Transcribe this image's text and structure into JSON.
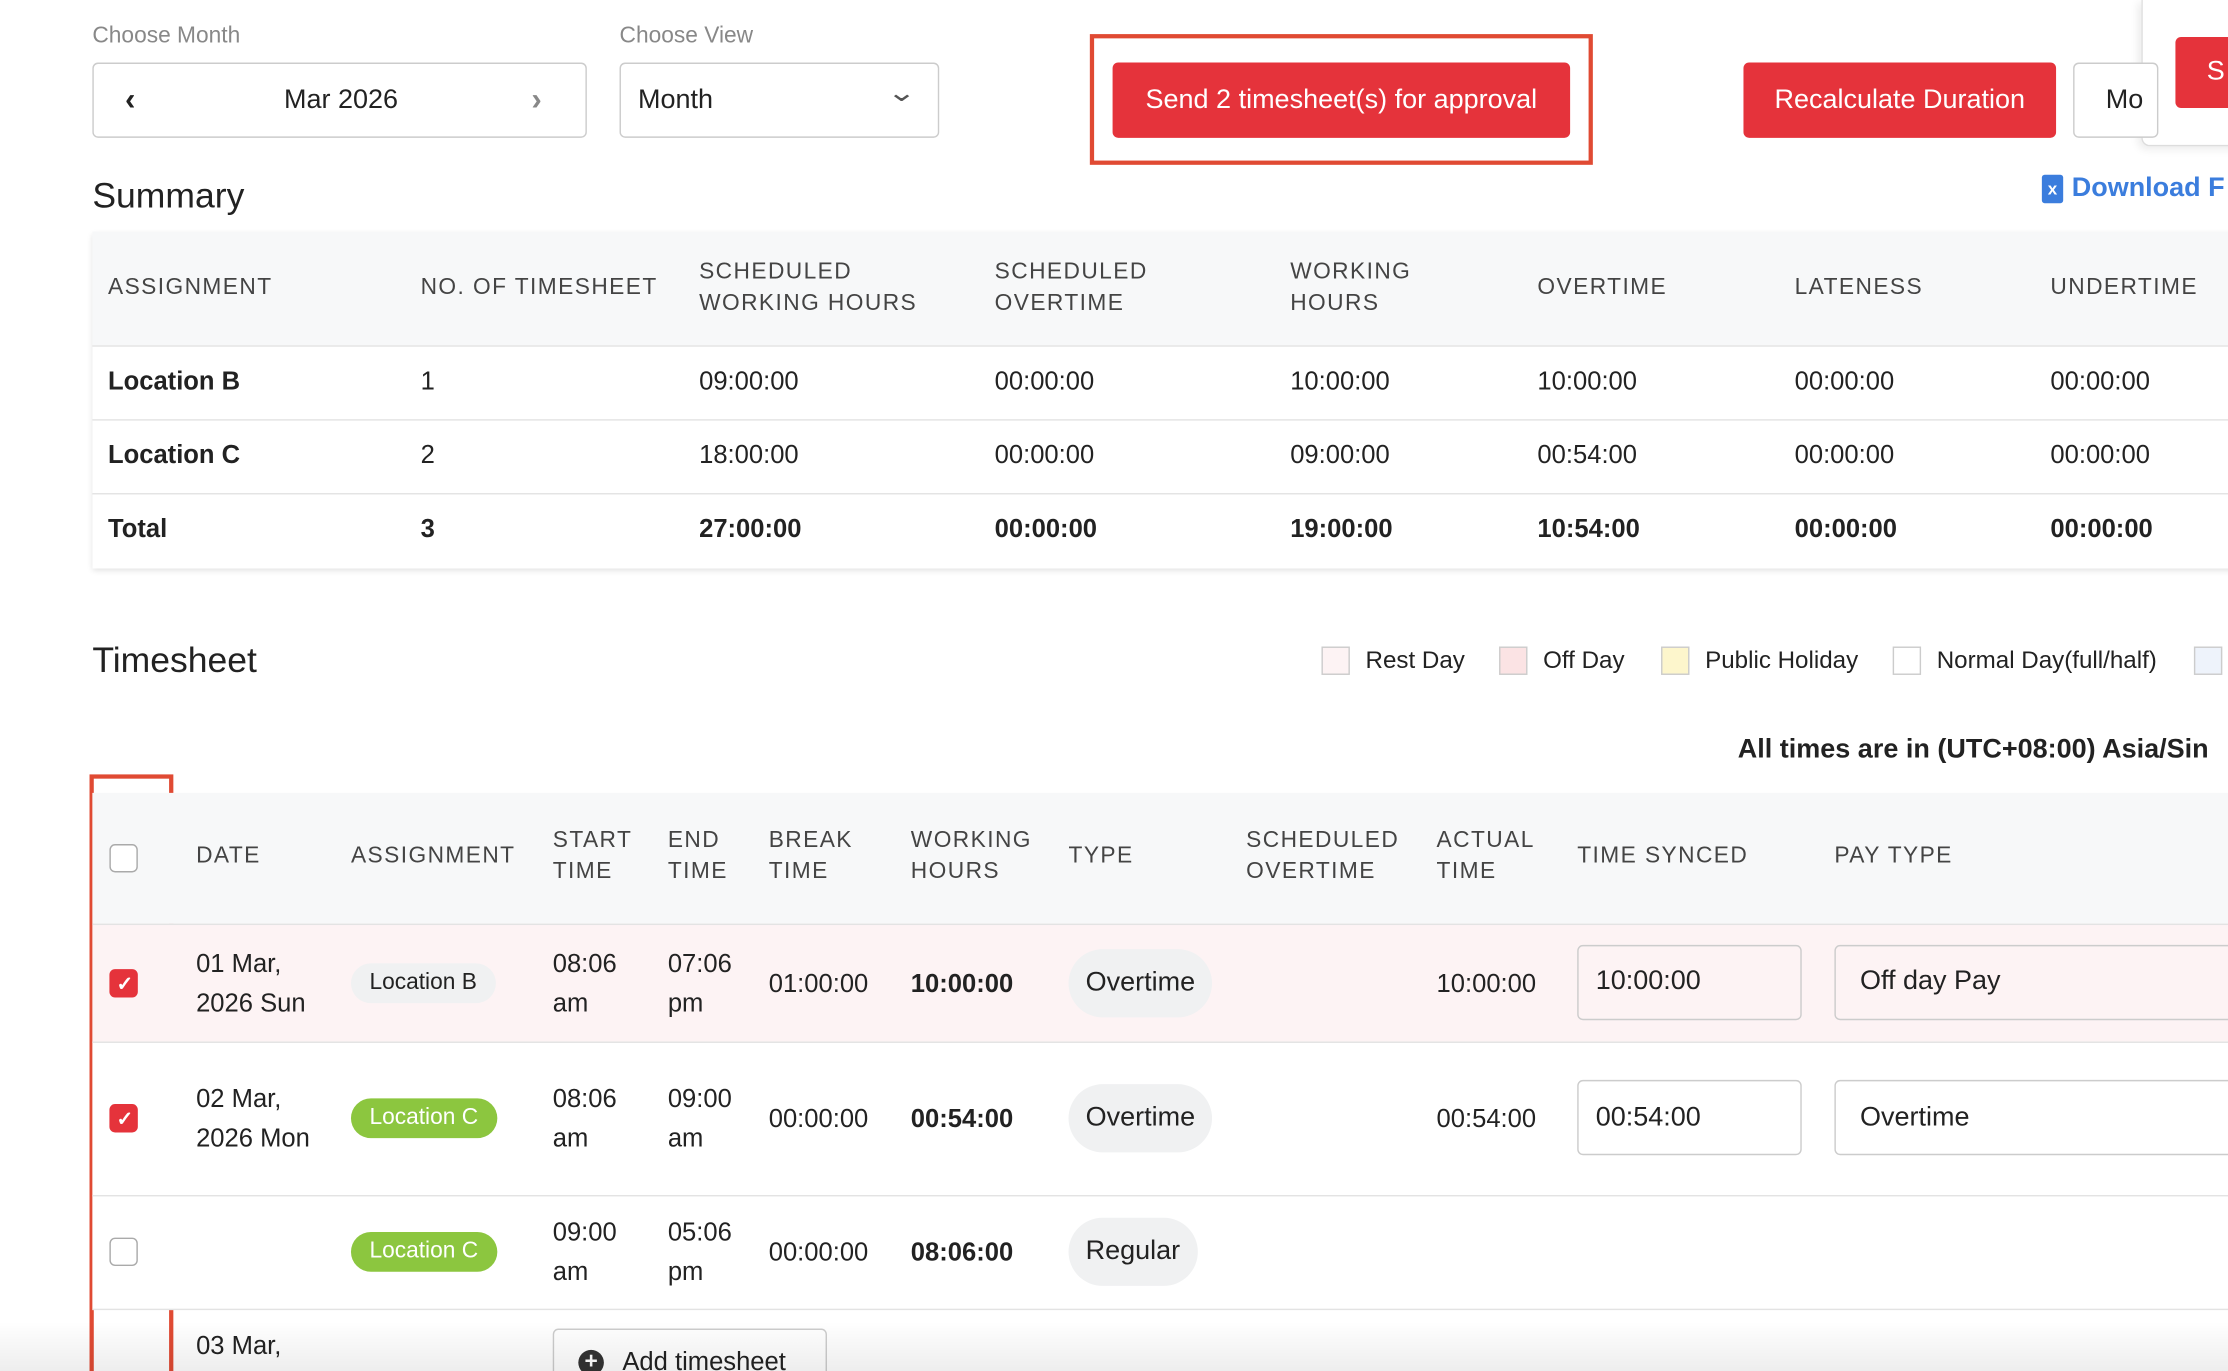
{
  "header": {
    "month_label": "Choose Month",
    "month": "Mar 2026",
    "view_label": "Choose View",
    "view": "Month",
    "send_button": "Send 2 timesheet(s) for approval",
    "recalculate_button": "Recalculate Duration",
    "more_button": "Mo",
    "side_button": "S"
  },
  "summary": {
    "title": "Summary",
    "download": "Download F",
    "columns": [
      "ASSIGNMENT",
      "NO. OF TIMESHEET",
      "SCHEDULED WORKING HOURS",
      "SCHEDULED OVERTIME",
      "WORKING HOURS",
      "OVERTIME",
      "LATENESS",
      "UNDERTIME"
    ],
    "rows": [
      [
        "Location B",
        "1",
        "09:00:00",
        "00:00:00",
        "10:00:00",
        "10:00:00",
        "00:00:00",
        "00:00:00"
      ],
      [
        "Location C",
        "2",
        "18:00:00",
        "00:00:00",
        "09:00:00",
        "00:54:00",
        "00:00:00",
        "00:00:00"
      ],
      [
        "Total",
        "3",
        "27:00:00",
        "00:00:00",
        "19:00:00",
        "10:54:00",
        "00:00:00",
        "00:00:00"
      ]
    ]
  },
  "timesheet": {
    "title": "Timesheet",
    "legend": [
      {
        "label": "Rest Day",
        "color": "#fdf3f4"
      },
      {
        "label": "Off Day",
        "color": "#fbe3e4"
      },
      {
        "label": "Public Holiday",
        "color": "#fdf6cc"
      },
      {
        "label": "Normal Day(full/half)",
        "color": "#ffffff"
      }
    ],
    "timezone": "All times are in (UTC+08:00) Asia/Sin",
    "columns": [
      "DATE",
      "ASSIGNMENT",
      "START TIME",
      "END TIME",
      "BREAK TIME",
      "WORKING HOURS",
      "TYPE",
      "SCHEDULED OVERTIME",
      "ACTUAL TIME",
      "TIME SYNCED",
      "PAY TYPE"
    ],
    "header_checked": false,
    "rows": [
      {
        "checked": true,
        "date": "01 Mar, 2026 Sun",
        "assignment": "Location B",
        "assignment_color": "#f0f1f2",
        "start": "08:06 am",
        "end": "07:06 pm",
        "break": "01:00:00",
        "working": "10:00:00",
        "type": "Overtime",
        "actual": "10:00:00",
        "synced": "10:00:00",
        "pay": "Off day Pay",
        "row_color": "#fdf3f4"
      },
      {
        "checked": true,
        "date": "02 Mar, 2026 Mon",
        "assignment": "Location C",
        "assignment_color": "#8cc63f",
        "start": "08:06 am",
        "end": "09:00 am",
        "break": "00:00:00",
        "working": "00:54:00",
        "type": "Overtime",
        "actual": "00:54:00",
        "synced": "00:54:00",
        "pay": "Overtime",
        "row_color": "#ffffff"
      },
      {
        "checked": false,
        "date": null,
        "assignment": "Location C",
        "assignment_color": "#8cc63f",
        "start": "09:00 am",
        "end": "05:06 pm",
        "break": "00:00:00",
        "working": "08:06:00",
        "type": "Regular",
        "actual": null,
        "synced": null,
        "pay": null,
        "row_color": "#ffffff"
      }
    ],
    "next_date": "03 Mar,",
    "add_button": "Add timesheet"
  }
}
